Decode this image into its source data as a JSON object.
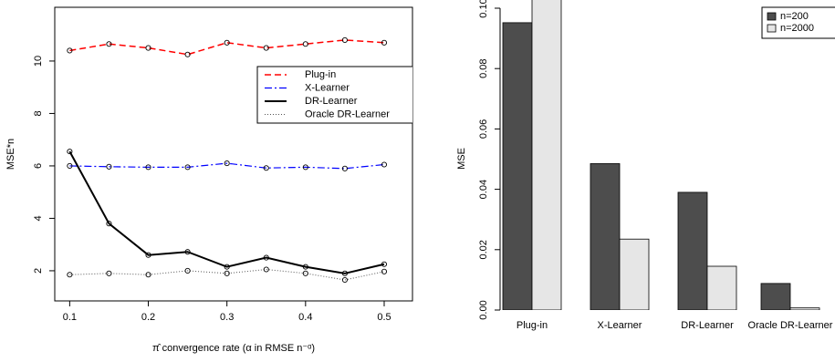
{
  "chart_data": [
    {
      "type": "line",
      "x_label": "π̂ convergence rate (α in RMSE n⁻ᵅ)",
      "y_label": "MSE*n",
      "x": [
        0.1,
        0.15,
        0.2,
        0.25,
        0.3,
        0.35,
        0.4,
        0.45,
        0.5
      ],
      "xlim": [
        0.081,
        0.536
      ],
      "xticks": [
        0.1,
        0.2,
        0.3,
        0.4,
        0.5
      ],
      "ylim": [
        0.85,
        12.05
      ],
      "yticks": [
        2,
        4,
        6,
        8,
        10
      ],
      "legend": "top-right",
      "series": [
        {
          "name": "Plug-in",
          "color": "#ff0000",
          "values": [
            10.4,
            10.65,
            10.5,
            10.25,
            10.7,
            10.5,
            10.65,
            10.8,
            10.7
          ]
        },
        {
          "name": "X-Learner",
          "color": "#0000ff",
          "values": [
            6.0,
            5.97,
            5.95,
            5.95,
            6.1,
            5.92,
            5.95,
            5.9,
            6.05
          ]
        },
        {
          "name": "DR-Learner",
          "color": "#000000",
          "values": [
            6.55,
            3.8,
            2.6,
            2.72,
            2.15,
            2.5,
            2.15,
            1.9,
            2.25
          ]
        },
        {
          "name": "Oracle DR-Learner",
          "color": "#555555",
          "values": [
            1.85,
            1.9,
            1.85,
            2.0,
            1.9,
            2.05,
            1.9,
            1.65,
            1.97
          ]
        }
      ]
    },
    {
      "type": "bar",
      "y_label": "MSE",
      "categories": [
        "Plug-in",
        "X-Learner",
        "DR-Learner",
        "Oracle DR-Learner"
      ],
      "ylim": [
        0,
        0.103
      ],
      "yticks": [
        {
          "value": 0,
          "label": "0.00"
        },
        {
          "value": 0.02,
          "label": "0.02"
        },
        {
          "value": 0.04,
          "label": "0.04"
        },
        {
          "value": 0.06,
          "label": "0.06"
        },
        {
          "value": 0.08,
          "label": "0.08"
        },
        {
          "value": 0.1,
          "label": "0.10"
        }
      ],
      "legend": "top-right",
      "series": [
        {
          "name": "n=200",
          "color": "#4d4d4d",
          "values": [
            0.0952,
            0.0485,
            0.039,
            0.0088
          ]
        },
        {
          "name": "n=2000",
          "color": "#e6e6e6",
          "values": [
            0.11,
            0.0235,
            0.0145,
            0.0007
          ]
        }
      ]
    }
  ]
}
